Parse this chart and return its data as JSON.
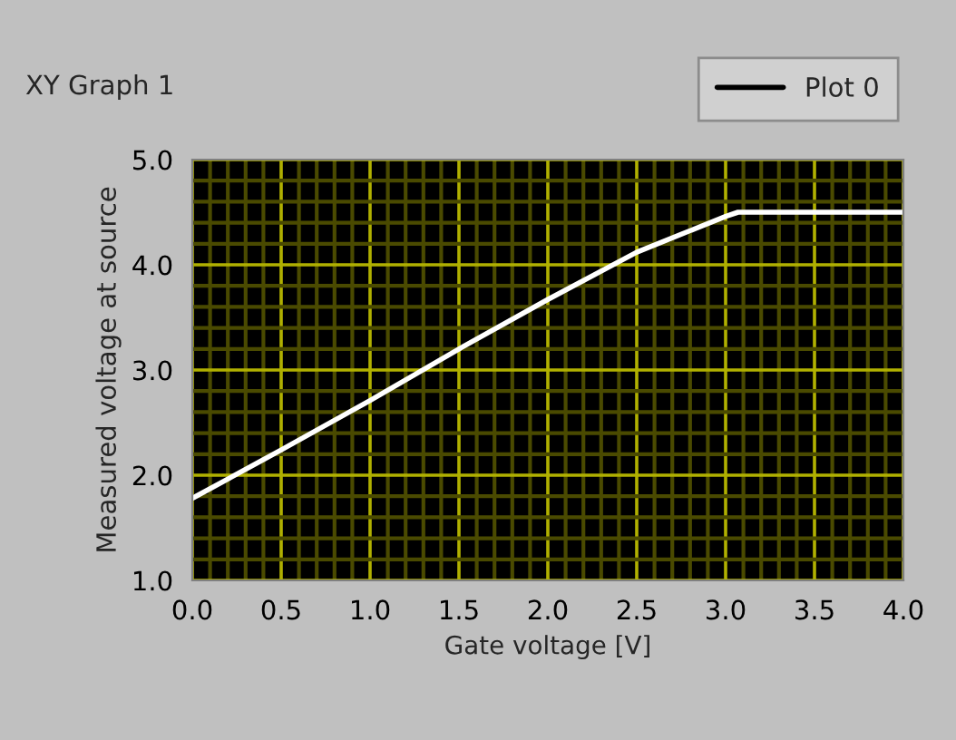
{
  "chart_data": {
    "type": "line",
    "title": "XY Graph 1",
    "xlabel": "Gate voltage [V]",
    "ylabel": "Measured voltage at source",
    "x": [
      0,
      0.5,
      1.0,
      1.5,
      2.0,
      2.5,
      3.0,
      3.07,
      4.0
    ],
    "series": [
      {
        "name": "Plot 0",
        "color": "#ffffff",
        "values": [
          1.78,
          2.24,
          2.71,
          3.2,
          3.67,
          4.12,
          4.46,
          4.5,
          4.5
        ]
      }
    ],
    "xlim": [
      0,
      4
    ],
    "xticks": [
      {
        "value": 0,
        "label": "0.0"
      },
      {
        "value": 0.1,
        "label": null
      },
      {
        "value": 0.2,
        "label": null
      },
      {
        "value": 0.3,
        "label": null
      },
      {
        "value": 0.4,
        "label": null
      },
      {
        "value": 0.5,
        "label": "0.5"
      },
      {
        "value": 0.6,
        "label": null
      },
      {
        "value": 0.7,
        "label": null
      },
      {
        "value": 0.8,
        "label": null
      },
      {
        "value": 0.9,
        "label": null
      },
      {
        "value": 1,
        "label": "1.0"
      },
      {
        "value": 1.1,
        "label": null
      },
      {
        "value": 1.2,
        "label": null
      },
      {
        "value": 1.3,
        "label": null
      },
      {
        "value": 1.4,
        "label": null
      },
      {
        "value": 1.5,
        "label": "1.5"
      },
      {
        "value": 1.6,
        "label": null
      },
      {
        "value": 1.7,
        "label": null
      },
      {
        "value": 1.8,
        "label": null
      },
      {
        "value": 1.9,
        "label": null
      },
      {
        "value": 2,
        "label": "2.0"
      },
      {
        "value": 2.1,
        "label": null
      },
      {
        "value": 2.2,
        "label": null
      },
      {
        "value": 2.3,
        "label": null
      },
      {
        "value": 2.4,
        "label": null
      },
      {
        "value": 2.5,
        "label": "2.5"
      },
      {
        "value": 2.6,
        "label": null
      },
      {
        "value": 2.7,
        "label": null
      },
      {
        "value": 2.8,
        "label": null
      },
      {
        "value": 2.9,
        "label": null
      },
      {
        "value": 3,
        "label": "3.0"
      },
      {
        "value": 3.1,
        "label": null
      },
      {
        "value": 3.2,
        "label": null
      },
      {
        "value": 3.3,
        "label": null
      },
      {
        "value": 3.4,
        "label": null
      },
      {
        "value": 3.5,
        "label": "3.5"
      },
      {
        "value": 3.6,
        "label": null
      },
      {
        "value": 3.7,
        "label": null
      },
      {
        "value": 3.8,
        "label": null
      },
      {
        "value": 3.9,
        "label": null
      },
      {
        "value": 4,
        "label": "4.0"
      }
    ],
    "ylim": [
      1,
      5
    ],
    "yticks": [
      {
        "value": 1,
        "label": "1.0"
      },
      {
        "value": 1.2,
        "label": null
      },
      {
        "value": 1.4,
        "label": null
      },
      {
        "value": 1.6,
        "label": null
      },
      {
        "value": 1.8,
        "label": null
      },
      {
        "value": 2,
        "label": "2.0"
      },
      {
        "value": 2.2,
        "label": null
      },
      {
        "value": 2.4,
        "label": null
      },
      {
        "value": 2.6,
        "label": null
      },
      {
        "value": 2.8,
        "label": null
      },
      {
        "value": 3,
        "label": "3.0"
      },
      {
        "value": 3.2,
        "label": null
      },
      {
        "value": 3.4,
        "label": null
      },
      {
        "value": 3.6,
        "label": null
      },
      {
        "value": 3.8,
        "label": null
      },
      {
        "value": 4,
        "label": "4.0"
      },
      {
        "value": 4.2,
        "label": null
      },
      {
        "value": 4.4,
        "label": null
      },
      {
        "value": 4.6,
        "label": null
      },
      {
        "value": 4.8,
        "label": null
      },
      {
        "value": 5,
        "label": "5.0"
      }
    ],
    "grid": true,
    "legend": "top right"
  }
}
